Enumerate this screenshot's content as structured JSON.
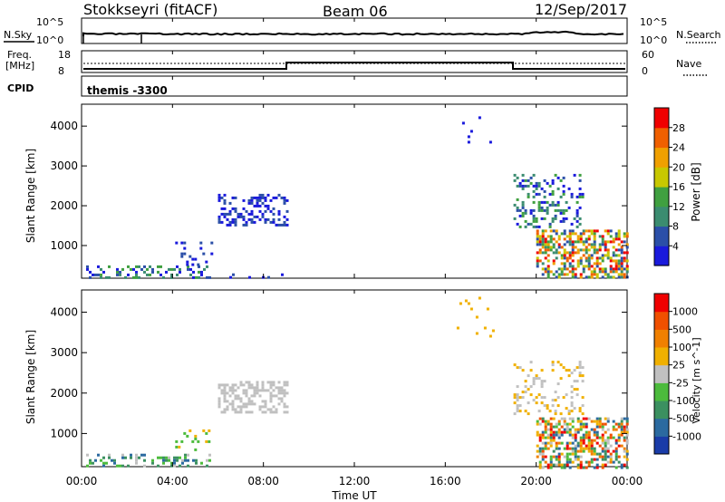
{
  "header": {
    "title": "Stokkseyri (fitACF)",
    "beam": "Beam 06",
    "date": "12/Sep/2017"
  },
  "noise_panel": {
    "left_label": "N.Sky",
    "right_label": "N.Search",
    "left_ticks": [
      "10^5",
      "10^0"
    ],
    "right_ticks": [
      "10^5",
      "10^0"
    ]
  },
  "freq_panel": {
    "left_label_1": "Freq.",
    "left_label_2": "[MHz]",
    "right_label": "Nave",
    "left_ticks": [
      "18",
      "8"
    ],
    "right_ticks": [
      "60",
      "0"
    ]
  },
  "cpid_panel": {
    "label": "CPID",
    "program": "themis -3300"
  },
  "time_axis": {
    "label": "Time UT",
    "ticks": [
      "00:00",
      "04:00",
      "08:00",
      "12:00",
      "16:00",
      "20:00",
      "00:00"
    ]
  },
  "colors": {
    "power_scale": [
      "#1a1adc",
      "#2b4fa8",
      "#3b8c70",
      "#40a040",
      "#c8c800",
      "#f0a000",
      "#f06000",
      "#f00000"
    ],
    "velocity_scale": [
      "#1a3ca8",
      "#2b6aa0",
      "#3b9060",
      "#4cbb3c",
      "#c0c0c0",
      "#f0b000",
      "#f08000",
      "#f05000",
      "#f00000"
    ]
  },
  "chart_data": [
    {
      "type": "heatmap",
      "name": "power",
      "xlabel": "",
      "ylabel": "Slant Range [km]",
      "y_ticks": [
        "1000",
        "2000",
        "3000",
        "4000"
      ],
      "colorbar_label": "Power [dB]",
      "colorbar_ticks": [
        "4",
        "8",
        "12",
        "16",
        "20",
        "24",
        "28"
      ],
      "x_range_hours": [
        0,
        24
      ],
      "y_range_km": [
        180,
        4550
      ],
      "clusters": [
        {
          "t": [
            0.2,
            5.6
          ],
          "r": [
            180,
            500
          ],
          "density": 0.35,
          "levels": [
            0,
            1,
            2,
            3
          ]
        },
        {
          "t": [
            4.0,
            5.8
          ],
          "r": [
            500,
            1100
          ],
          "density": 0.12,
          "levels": [
            0,
            1
          ]
        },
        {
          "t": [
            6.0,
            9.0
          ],
          "r": [
            1500,
            2300
          ],
          "density": 0.4,
          "levels": [
            0,
            1
          ]
        },
        {
          "t": [
            6.5,
            9.0
          ],
          "r": [
            180,
            300
          ],
          "density": 0.15,
          "levels": [
            0,
            1
          ]
        },
        {
          "t": [
            16.5,
            18.2
          ],
          "r": [
            3400,
            4450
          ],
          "density": 0.04,
          "levels": [
            0
          ]
        },
        {
          "t": [
            19.0,
            22.0
          ],
          "r": [
            1500,
            2800
          ],
          "density": 0.25,
          "levels": [
            0,
            1,
            2,
            3
          ]
        },
        {
          "t": [
            20.0,
            24.0
          ],
          "r": [
            180,
            1400
          ],
          "density": 0.55,
          "levels": [
            1,
            2,
            3,
            4,
            5,
            6,
            7
          ]
        }
      ]
    },
    {
      "type": "heatmap",
      "name": "velocity",
      "xlabel": "Time UT",
      "ylabel": "Slant Range [km]",
      "y_ticks": [
        "1000",
        "2000",
        "3000",
        "4000"
      ],
      "colorbar_label": "Velocity [m s^-1]",
      "colorbar_ticks": [
        "1000",
        "500",
        "100",
        "25",
        "-25",
        "-100",
        "-500",
        "-1000"
      ],
      "x_range_hours": [
        0,
        24
      ],
      "y_range_km": [
        180,
        4550
      ],
      "clusters": [
        {
          "t": [
            0.2,
            5.6
          ],
          "r": [
            180,
            500
          ],
          "density": 0.35,
          "levels": [
            1,
            2,
            3,
            4
          ]
        },
        {
          "t": [
            4.0,
            5.8
          ],
          "r": [
            500,
            1100
          ],
          "density": 0.12,
          "levels": [
            3,
            5
          ]
        },
        {
          "t": [
            6.0,
            9.0
          ],
          "r": [
            1500,
            2300
          ],
          "density": 0.4,
          "levels": [
            4
          ]
        },
        {
          "t": [
            16.5,
            18.2
          ],
          "r": [
            3400,
            4450
          ],
          "density": 0.04,
          "levels": [
            5
          ]
        },
        {
          "t": [
            19.0,
            22.0
          ],
          "r": [
            1500,
            2800
          ],
          "density": 0.25,
          "levels": [
            4,
            5
          ]
        },
        {
          "t": [
            20.0,
            24.0
          ],
          "r": [
            180,
            1400
          ],
          "density": 0.55,
          "levels": [
            1,
            2,
            3,
            4,
            5,
            6,
            7,
            8
          ]
        }
      ]
    }
  ]
}
